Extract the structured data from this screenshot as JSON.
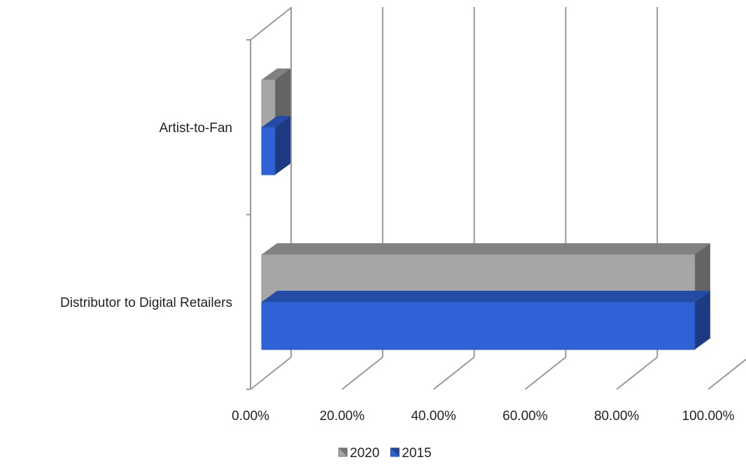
{
  "chart_data": {
    "type": "bar",
    "orientation": "horizontal",
    "style": "3d",
    "categories": [
      "Artist-to-Fan",
      "Distributor to Digital Retailers"
    ],
    "series": [
      {
        "name": "2020",
        "values": [
          3.0,
          97.0
        ],
        "color": "#a6a6a6"
      },
      {
        "name": "2015",
        "values": [
          3.0,
          97.0
        ],
        "color": "#2e62d6"
      }
    ],
    "xlim": [
      0,
      100
    ],
    "x_ticks": [
      "0.00%",
      "20.00%",
      "40.00%",
      "60.00%",
      "80.00%",
      "100.00%"
    ],
    "grid": true,
    "legend": {
      "position": "bottom",
      "order": [
        "2020",
        "2015"
      ]
    }
  }
}
